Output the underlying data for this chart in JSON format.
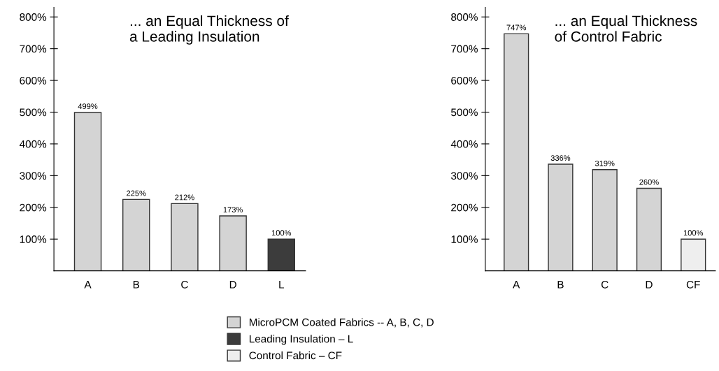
{
  "chart_data": [
    {
      "type": "bar",
      "title": "... an Equal Thickness of\na Leading Insulation",
      "categories": [
        "A",
        "B",
        "C",
        "D",
        "L"
      ],
      "legend": "bottom",
      "grid": false,
      "ylim": [
        0,
        830
      ],
      "yticks": [
        {
          "value": 100,
          "label": "100%"
        },
        {
          "value": 200,
          "label": "200%"
        },
        {
          "value": 300,
          "label": "300%"
        },
        {
          "value": 400,
          "label": "400%"
        },
        {
          "value": 500,
          "label": "500%"
        },
        {
          "value": 600,
          "label": "600%"
        },
        {
          "value": 700,
          "label": "700%"
        },
        {
          "value": 800,
          "label": "800%"
        }
      ],
      "series": [
        {
          "name": "MicroPCM Coated Fabrics -- A, B, C, D",
          "color": "#d4d4d4",
          "values": [
            499,
            225,
            212,
            173,
            null
          ],
          "value_labels": [
            "499%",
            "225%",
            "212%",
            "173%",
            null
          ]
        },
        {
          "name": "Leading Insulation – L",
          "color": "#3c3c3c",
          "values": [
            null,
            null,
            null,
            null,
            100
          ],
          "value_labels": [
            null,
            null,
            null,
            null,
            "100%"
          ]
        }
      ]
    },
    {
      "type": "bar",
      "title": "... an Equal Thickness\nof Control Fabric",
      "categories": [
        "A",
        "B",
        "C",
        "D",
        "CF"
      ],
      "legend": "bottom",
      "grid": false,
      "ylim": [
        0,
        830
      ],
      "yticks": [
        {
          "value": 100,
          "label": "100%"
        },
        {
          "value": 200,
          "label": "200%"
        },
        {
          "value": 300,
          "label": "300%"
        },
        {
          "value": 400,
          "label": "400%"
        },
        {
          "value": 500,
          "label": "500%"
        },
        {
          "value": 600,
          "label": "600%"
        },
        {
          "value": 700,
          "label": "700%"
        },
        {
          "value": 800,
          "label": "800%"
        }
      ],
      "series": [
        {
          "name": "MicroPCM Coated Fabrics -- A, B, C, D",
          "color": "#d4d4d4",
          "values": [
            747,
            336,
            319,
            260,
            null
          ],
          "value_labels": [
            "747%",
            "336%",
            "319%",
            "260%",
            null
          ]
        },
        {
          "name": "Control Fabric – CF",
          "color": "#eeeeee",
          "values": [
            null,
            null,
            null,
            null,
            100
          ],
          "value_labels": [
            null,
            null,
            null,
            null,
            "100%"
          ]
        }
      ]
    }
  ]
}
